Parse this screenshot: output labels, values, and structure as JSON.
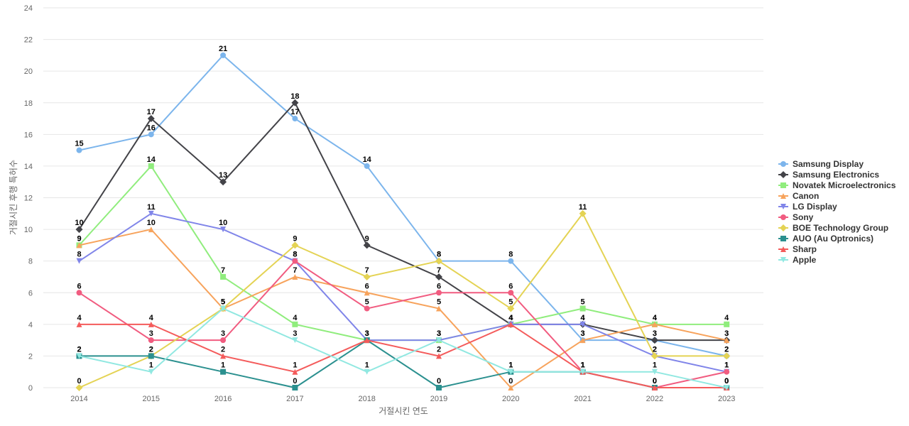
{
  "chart_data": {
    "type": "line",
    "xlabel": "거절시킨 연도",
    "ylabel": "거절시킨 후행 특허수",
    "ylim": [
      0,
      24
    ],
    "yticks": [
      0,
      2,
      4,
      6,
      8,
      10,
      12,
      14,
      16,
      18,
      20,
      22,
      24
    ],
    "grid": true,
    "legend_position": "right",
    "categories": [
      "2014",
      "2015",
      "2016",
      "2017",
      "2018",
      "2019",
      "2020",
      "2021",
      "2022",
      "2023"
    ],
    "series": [
      {
        "name": "Samsung Display",
        "color": "#7cb5ec",
        "marker": "circle",
        "values": [
          15,
          16,
          21,
          17,
          14,
          8,
          8,
          3,
          3,
          2
        ]
      },
      {
        "name": "Samsung Electronics",
        "color": "#434348",
        "marker": "diamond",
        "values": [
          10,
          17,
          13,
          18,
          9,
          7,
          4,
          4,
          3,
          3
        ]
      },
      {
        "name": "Novatek Microelectronics",
        "color": "#90ed7d",
        "marker": "square",
        "values": [
          9,
          14,
          7,
          4,
          3,
          3,
          4,
          5,
          4,
          4
        ]
      },
      {
        "name": "Canon",
        "color": "#f7a35c",
        "marker": "triangle",
        "values": [
          9,
          10,
          5,
          7,
          6,
          5,
          0,
          3,
          4,
          3
        ]
      },
      {
        "name": "LG Display",
        "color": "#8085e9",
        "marker": "triangle-down",
        "values": [
          8,
          11,
          10,
          8,
          3,
          3,
          4,
          4,
          2,
          1
        ]
      },
      {
        "name": "Sony",
        "color": "#f15c80",
        "marker": "circle",
        "values": [
          6,
          3,
          3,
          8,
          5,
          6,
          6,
          1,
          0,
          1
        ]
      },
      {
        "name": "BOE Technology Group",
        "color": "#e4d354",
        "marker": "diamond",
        "values": [
          0,
          2,
          5,
          9,
          7,
          8,
          5,
          11,
          2,
          2
        ]
      },
      {
        "name": "AUO (Au Optronics)",
        "color": "#2b908f",
        "marker": "square",
        "values": [
          2,
          2,
          1,
          0,
          3,
          0,
          1,
          1,
          0,
          0
        ]
      },
      {
        "name": "Sharp",
        "color": "#f45b5b",
        "marker": "triangle",
        "values": [
          4,
          4,
          2,
          1,
          3,
          2,
          4,
          1,
          0,
          0
        ]
      },
      {
        "name": "Apple",
        "color": "#91e8e1",
        "marker": "triangle-down",
        "values": [
          2,
          1,
          5,
          3,
          1,
          3,
          1,
          1,
          1,
          0
        ]
      }
    ]
  }
}
